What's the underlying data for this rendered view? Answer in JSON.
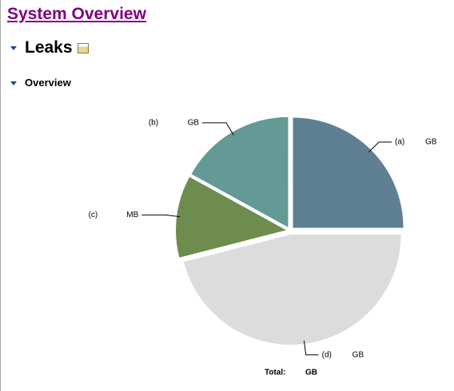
{
  "header": {
    "title": "System Overview",
    "section": "Leaks",
    "subsection": "Overview"
  },
  "chart_data": {
    "type": "pie",
    "categories": [
      "(a)",
      "(b)",
      "(c)",
      "(d)"
    ],
    "values": [
      25,
      17,
      12,
      46
    ],
    "value_labels": [
      "GB",
      "GB",
      "MB",
      "GB"
    ],
    "colors": [
      "#5f7f93",
      "#639a95",
      "#6e8c4e",
      "#dcdcdc"
    ],
    "total_label": "Total:",
    "total_unit": "GB"
  }
}
